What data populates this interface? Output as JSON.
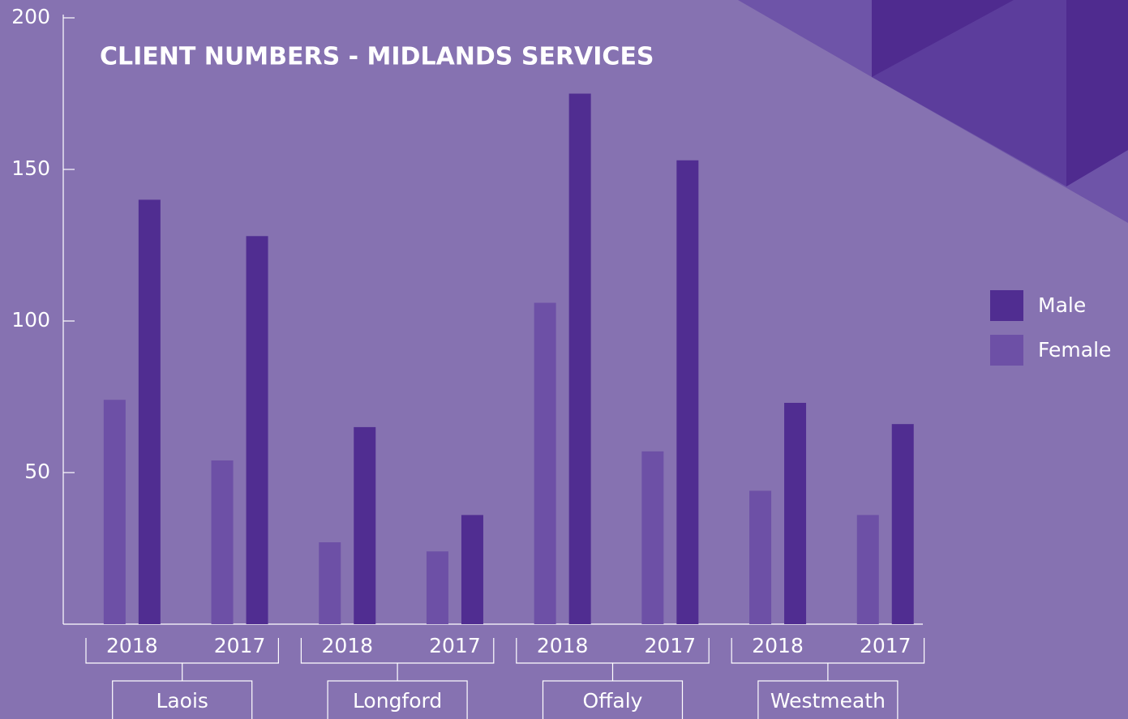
{
  "chart_data": {
    "type": "bar",
    "title": "CLIENT NUMBERS - MIDLANDS SERVICES",
    "categories": [
      "2018",
      "2017",
      "2018",
      "2017",
      "2018",
      "2017",
      "2018",
      "2017"
    ],
    "groups": [
      "Laois",
      "Longford",
      "Offaly",
      "Westmeath"
    ],
    "series": [
      {
        "name": "Female",
        "color": "#6d50a6",
        "values": [
          74,
          54,
          27,
          24,
          106,
          57,
          44,
          36
        ]
      },
      {
        "name": "Male",
        "color": "#502d91",
        "values": [
          140,
          128,
          65,
          36,
          175,
          153,
          73,
          66
        ]
      }
    ],
    "ylim": [
      0,
      200
    ],
    "yticks": [
      50,
      100,
      150,
      200
    ],
    "legend": "right"
  }
}
